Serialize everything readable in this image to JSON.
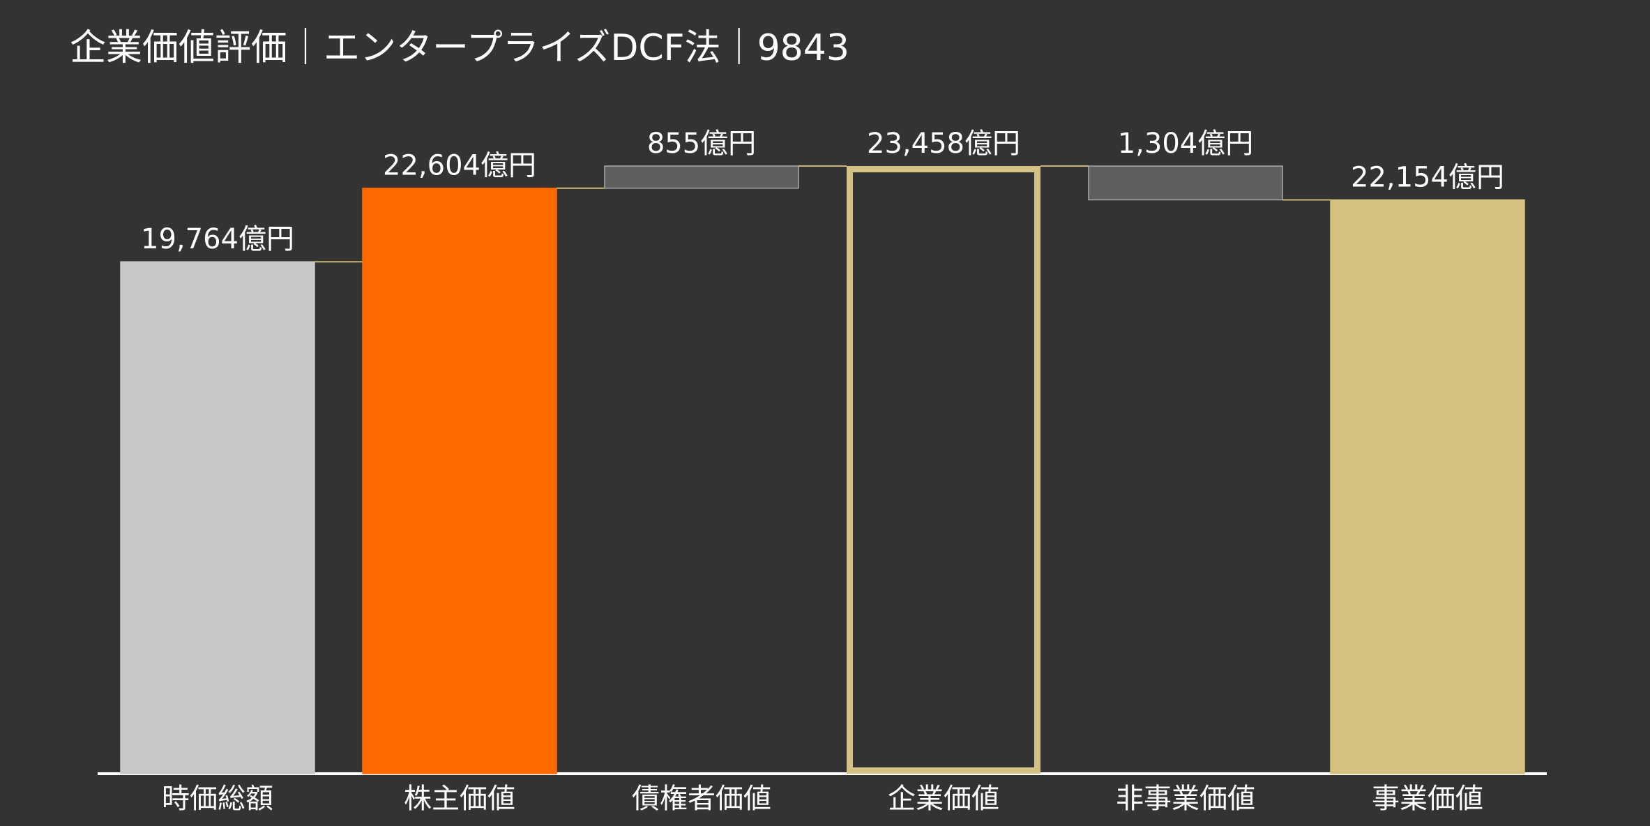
{
  "chart_data": {
    "type": "waterfall",
    "title": "企業価値評価｜エンタープライズDCF法｜9843",
    "categories": [
      "時価総額",
      "株主価値",
      "債権者価値",
      "企業価値",
      "非事業価値",
      "事業価値"
    ],
    "values": [
      19764,
      22604,
      855,
      23458,
      1304,
      22154
    ],
    "value_labels": [
      "19,764億円",
      "22,604億円",
      "855億円",
      "23,458億円",
      "1,304億円",
      "22,154億円"
    ],
    "measures": [
      "total",
      "total",
      "increase",
      "total",
      "decrease",
      "total"
    ],
    "colors": [
      "#c8c8c8",
      "#ff6a00",
      "#5f5f5f",
      "#d4c185",
      "#5f5f5f",
      "#d5c17f"
    ],
    "bar_styles": [
      "fill",
      "fill",
      "fill",
      "outline",
      "fill",
      "fill"
    ]
  }
}
